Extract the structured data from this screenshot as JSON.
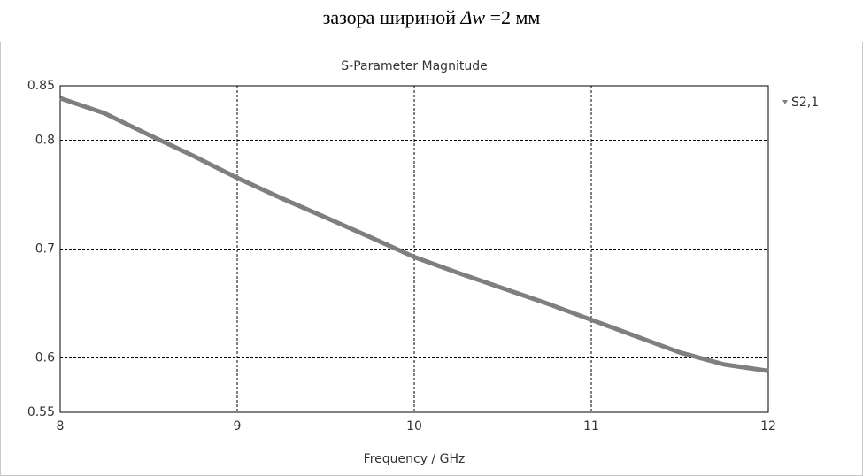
{
  "caption": {
    "before": "зазора шириной ",
    "italic": "Δw",
    "after": " =2 мм"
  },
  "chart_data": {
    "type": "line",
    "title": "S-Parameter Magnitude",
    "x_label": "Frequency / GHz",
    "x": [
      8,
      8.25,
      8.5,
      8.75,
      9,
      9.25,
      9.5,
      9.75,
      10,
      10.25,
      10.5,
      10.75,
      11,
      11.25,
      11.5,
      11.75,
      12
    ],
    "series": [
      {
        "name": "S2,1",
        "color": "#7f7f7f",
        "values": [
          0.8386,
          0.8248,
          0.805,
          0.7858,
          0.7654,
          0.7467,
          0.729,
          0.711,
          0.6927,
          0.678,
          0.664,
          0.65,
          0.635,
          0.62,
          0.605,
          0.594,
          0.588
        ]
      }
    ],
    "xlim": [
      8,
      12
    ],
    "xticks": [
      8,
      9,
      10,
      11,
      12
    ],
    "ylim": [
      0.55,
      0.85
    ],
    "yticks": [
      0.55,
      0.6,
      0.7,
      0.8,
      0.85
    ],
    "grid": true,
    "legend": "right"
  }
}
